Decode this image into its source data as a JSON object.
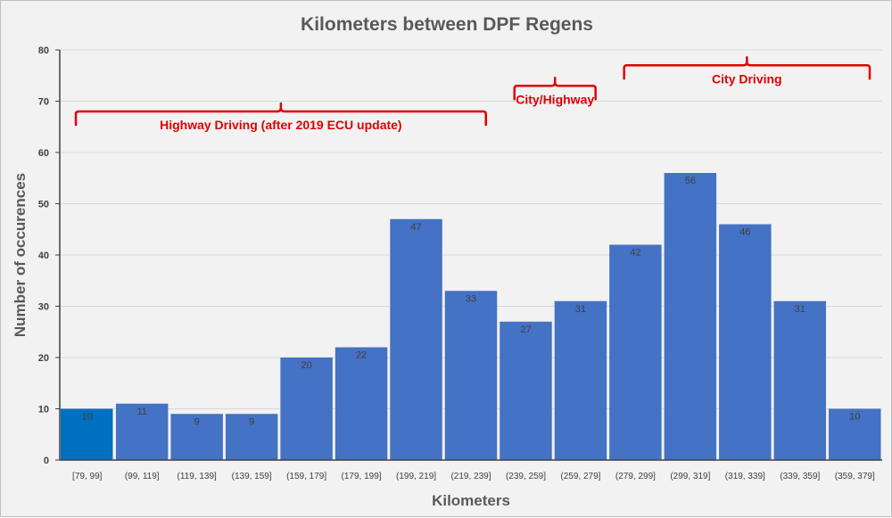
{
  "chart_data": {
    "type": "bar",
    "title": "Kilometers between DPF Regens",
    "xlabel": "Kilometers",
    "ylabel": "Number of occurences",
    "ylim": [
      0,
      80
    ],
    "yticks": [
      0,
      10,
      20,
      30,
      40,
      50,
      60,
      70,
      80
    ],
    "categories": [
      "[79, 99]",
      "(99, 119]",
      "(119, 139]",
      "(139, 159]",
      "(159, 179]",
      "(179, 199]",
      "(199, 219]",
      "(219, 239]",
      "(239, 259]",
      "(259, 279]",
      "(279, 299]",
      "(299, 319]",
      "(319, 339]",
      "(339, 359]",
      "(359, 379]"
    ],
    "values": [
      10,
      11,
      9,
      9,
      20,
      22,
      47,
      33,
      27,
      31,
      42,
      56,
      46,
      31,
      10
    ],
    "grid": "horizontal",
    "highlighted_index": 0,
    "colors": {
      "bar": "#4472c4",
      "highlighted_bar": "#0070c0",
      "annotation": "#e00000",
      "background": "#f2f2f2"
    },
    "annotations": [
      {
        "text": "Highway Driving (after 2019  ECU update)",
        "from_category": 0,
        "to_category": 7,
        "y": 68
      },
      {
        "text": "City/Highway",
        "from_category": 8,
        "to_category": 9,
        "y": 73
      },
      {
        "text": "City Driving",
        "from_category": 10,
        "to_category": 14,
        "y": 77
      }
    ]
  }
}
